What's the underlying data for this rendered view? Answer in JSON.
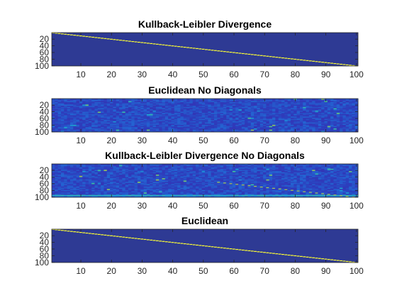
{
  "colors": {
    "background": "#2e3a94",
    "diagonal": "#ffff33",
    "colormap": [
      "#3e26a8",
      "#2c3fbe",
      "#216fd8",
      "#1aa2d6",
      "#3bbfa0",
      "#a8c44e",
      "#f6ba3e",
      "#f9fb15"
    ]
  },
  "chart_data": [
    {
      "type": "heatmap",
      "title": "Kullback-Leibler Divergence",
      "pattern": "diagonal",
      "x_ticks": [
        10,
        20,
        30,
        40,
        50,
        60,
        70,
        80,
        90,
        100
      ],
      "y_ticks": [
        20,
        40,
        60,
        80,
        100
      ],
      "xlim": [
        0.5,
        100.5
      ],
      "ylim": [
        0.5,
        100.5
      ],
      "y_direction": "reverse",
      "grid": false
    },
    {
      "type": "heatmap",
      "title": "Euclidean No Diagonals",
      "pattern": "noise",
      "x_ticks": [
        10,
        20,
        30,
        40,
        50,
        60,
        70,
        80,
        90,
        100
      ],
      "y_ticks": [
        20,
        40,
        60,
        80,
        100
      ],
      "xlim": [
        0.5,
        100.5
      ],
      "ylim": [
        0.5,
        100.5
      ],
      "y_direction": "reverse",
      "grid": false
    },
    {
      "type": "heatmap",
      "title": "Kullback-Leibler Divergence No Diagonals",
      "pattern": "noise-bottom-band",
      "x_ticks": [
        10,
        20,
        30,
        40,
        50,
        60,
        70,
        80,
        90,
        100
      ],
      "y_ticks": [
        20,
        40,
        60,
        80,
        100
      ],
      "xlim": [
        0.5,
        100.5
      ],
      "ylim": [
        0.5,
        100.5
      ],
      "y_direction": "reverse",
      "grid": false
    },
    {
      "type": "heatmap",
      "title": "Euclidean",
      "pattern": "diagonal",
      "x_ticks": [
        10,
        20,
        30,
        40,
        50,
        60,
        70,
        80,
        90,
        100
      ],
      "y_ticks": [
        20,
        40,
        60,
        80,
        100
      ],
      "xlim": [
        0.5,
        100.5
      ],
      "ylim": [
        0.5,
        100.5
      ],
      "y_direction": "reverse",
      "grid": false
    }
  ]
}
